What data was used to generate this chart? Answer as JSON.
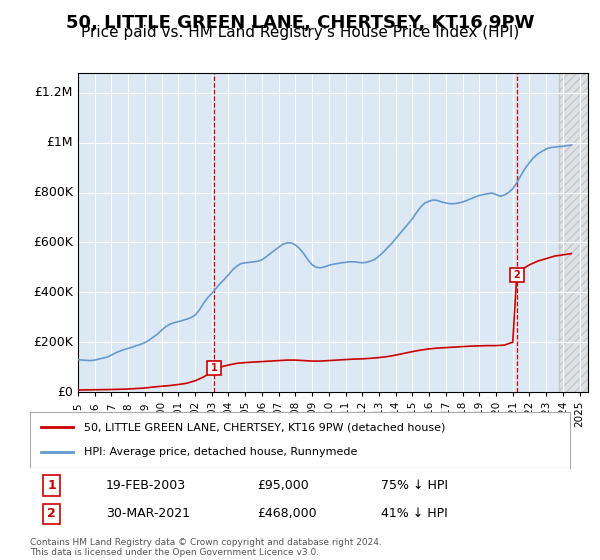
{
  "title": "50, LITTLE GREEN LANE, CHERTSEY, KT16 9PW",
  "subtitle": "Price paid vs. HM Land Registry's House Price Index (HPI)",
  "title_fontsize": 13,
  "subtitle_fontsize": 11,
  "bg_color": "#ffffff",
  "plot_bg_color": "#dce9f5",
  "hatch_bg_color": "#e8e8e8",
  "ylabel_ticks": [
    "£0",
    "£200K",
    "£400K",
    "£600K",
    "£800K",
    "£1M",
    "£1.2M"
  ],
  "ytick_vals": [
    0,
    200000,
    400000,
    600000,
    800000,
    1000000,
    1200000
  ],
  "ylim": [
    0,
    1280000
  ],
  "xlim_start": 1995.0,
  "xlim_end": 2025.5,
  "purchase1_year": 2003.13,
  "purchase1_price": 95000,
  "purchase2_year": 2021.24,
  "purchase2_price": 468000,
  "legend_label_red": "50, LITTLE GREEN LANE, CHERTSEY, KT16 9PW (detached house)",
  "legend_label_blue": "HPI: Average price, detached house, Runnymede",
  "annotation1_label": "1",
  "annotation1_date": "19-FEB-2003",
  "annotation1_price": "£95,000",
  "annotation1_hpi": "75% ↓ HPI",
  "annotation2_label": "2",
  "annotation2_date": "30-MAR-2021",
  "annotation2_price": "£468,000",
  "annotation2_hpi": "41% ↓ HPI",
  "footer": "Contains HM Land Registry data © Crown copyright and database right 2024.\nThis data is licensed under the Open Government Licence v3.0.",
  "red_line_color": "#cc0000",
  "blue_line_color": "#6699cc",
  "marker_color": "#cc0000",
  "vline_color": "#cc0000",
  "grid_color": "#ffffff",
  "hpi_data_years": [
    1995.0,
    1995.25,
    1995.5,
    1995.75,
    1996.0,
    1996.25,
    1996.5,
    1996.75,
    1997.0,
    1997.25,
    1997.5,
    1997.75,
    1998.0,
    1998.25,
    1998.5,
    1998.75,
    1999.0,
    1999.25,
    1999.5,
    1999.75,
    2000.0,
    2000.25,
    2000.5,
    2000.75,
    2001.0,
    2001.25,
    2001.5,
    2001.75,
    2002.0,
    2002.25,
    2002.5,
    2002.75,
    2003.0,
    2003.25,
    2003.5,
    2003.75,
    2004.0,
    2004.25,
    2004.5,
    2004.75,
    2005.0,
    2005.25,
    2005.5,
    2005.75,
    2006.0,
    2006.25,
    2006.5,
    2006.75,
    2007.0,
    2007.25,
    2007.5,
    2007.75,
    2008.0,
    2008.25,
    2008.5,
    2008.75,
    2009.0,
    2009.25,
    2009.5,
    2009.75,
    2010.0,
    2010.25,
    2010.5,
    2010.75,
    2011.0,
    2011.25,
    2011.5,
    2011.75,
    2012.0,
    2012.25,
    2012.5,
    2012.75,
    2013.0,
    2013.25,
    2013.5,
    2013.75,
    2014.0,
    2014.25,
    2014.5,
    2014.75,
    2015.0,
    2015.25,
    2015.5,
    2015.75,
    2016.0,
    2016.25,
    2016.5,
    2016.75,
    2017.0,
    2017.25,
    2017.5,
    2017.75,
    2018.0,
    2018.25,
    2018.5,
    2018.75,
    2019.0,
    2019.25,
    2019.5,
    2019.75,
    2020.0,
    2020.25,
    2020.5,
    2020.75,
    2021.0,
    2021.25,
    2021.5,
    2021.75,
    2022.0,
    2022.25,
    2022.5,
    2022.75,
    2023.0,
    2023.25,
    2023.5,
    2023.75,
    2024.0,
    2024.25,
    2024.5
  ],
  "hpi_data_values": [
    130000,
    128000,
    127000,
    126000,
    128000,
    132000,
    136000,
    140000,
    148000,
    157000,
    164000,
    170000,
    175000,
    180000,
    186000,
    191000,
    198000,
    208000,
    220000,
    232000,
    248000,
    262000,
    272000,
    278000,
    282000,
    287000,
    292000,
    298000,
    308000,
    328000,
    355000,
    378000,
    395000,
    415000,
    435000,
    452000,
    470000,
    490000,
    505000,
    515000,
    518000,
    520000,
    522000,
    524000,
    530000,
    542000,
    555000,
    568000,
    580000,
    592000,
    598000,
    598000,
    590000,
    575000,
    555000,
    530000,
    510000,
    500000,
    498000,
    502000,
    508000,
    512000,
    515000,
    518000,
    520000,
    522000,
    522000,
    520000,
    518000,
    520000,
    525000,
    532000,
    545000,
    560000,
    578000,
    595000,
    615000,
    635000,
    655000,
    675000,
    695000,
    720000,
    742000,
    758000,
    765000,
    770000,
    768000,
    762000,
    758000,
    755000,
    755000,
    758000,
    762000,
    768000,
    775000,
    782000,
    788000,
    792000,
    795000,
    798000,
    792000,
    785000,
    790000,
    800000,
    815000,
    840000,
    870000,
    898000,
    920000,
    940000,
    955000,
    965000,
    975000,
    980000,
    982000,
    984000,
    985000,
    988000,
    990000
  ],
  "red_data_years": [
    1995.0,
    1995.5,
    1996.0,
    1996.5,
    1997.0,
    1997.5,
    1998.0,
    1998.5,
    1999.0,
    1999.5,
    2000.0,
    2000.5,
    2001.0,
    2001.5,
    2002.0,
    2002.5,
    2003.0,
    2003.13,
    2003.5,
    2004.0,
    2004.5,
    2005.0,
    2005.5,
    2006.0,
    2006.5,
    2007.0,
    2007.5,
    2008.0,
    2008.5,
    2009.0,
    2009.5,
    2010.0,
    2010.5,
    2011.0,
    2011.5,
    2012.0,
    2012.5,
    2013.0,
    2013.5,
    2014.0,
    2014.5,
    2015.0,
    2015.5,
    2016.0,
    2016.5,
    2017.0,
    2017.5,
    2018.0,
    2018.5,
    2019.0,
    2019.5,
    2020.0,
    2020.5,
    2021.0,
    2021.24,
    2021.5,
    2022.0,
    2022.5,
    2023.0,
    2023.5,
    2024.0,
    2024.5
  ],
  "red_data_values": [
    8000,
    8500,
    9000,
    9500,
    10000,
    11000,
    12000,
    14000,
    16000,
    20000,
    23000,
    26000,
    30000,
    35000,
    45000,
    60000,
    80000,
    95000,
    100000,
    108000,
    115000,
    118000,
    120000,
    122000,
    124000,
    126000,
    128000,
    128000,
    126000,
    124000,
    124000,
    126000,
    128000,
    130000,
    132000,
    133000,
    135000,
    138000,
    142000,
    148000,
    155000,
    162000,
    168000,
    173000,
    176000,
    178000,
    180000,
    182000,
    184000,
    185000,
    186000,
    186000,
    188000,
    200000,
    468000,
    490000,
    510000,
    525000,
    535000,
    545000,
    550000,
    555000
  ]
}
